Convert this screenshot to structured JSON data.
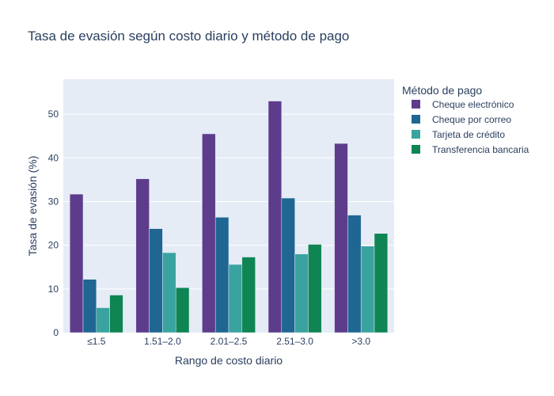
{
  "chart_data": {
    "type": "bar",
    "title": "Tasa de evasión según costo diario y método de pago",
    "xlabel": "Rango de costo diario",
    "ylabel": "Tasa de evasión (%)",
    "categories": [
      "≤1.5",
      "1.51–2.0",
      "2.01–2.5",
      "2.51–3.0",
      ">3.0"
    ],
    "ylim": [
      0,
      58
    ],
    "yticks": [
      0,
      10,
      20,
      30,
      40,
      50
    ],
    "grid": true,
    "legend": {
      "title": "Método de pago",
      "placement": "right"
    },
    "series": [
      {
        "name": "Cheque electrónico",
        "color": "#5e3c8c",
        "values": [
          31.7,
          35.2,
          45.5,
          53.0,
          43.3
        ]
      },
      {
        "name": "Cheque por correo",
        "color": "#1f6693",
        "values": [
          12.2,
          23.8,
          26.4,
          30.8,
          26.9
        ]
      },
      {
        "name": "Tarjeta de crédito",
        "color": "#3aa39f",
        "values": [
          5.7,
          18.3,
          15.6,
          18.0,
          19.8
        ]
      },
      {
        "name": "Transferencia bancaria",
        "color": "#0e8553",
        "values": [
          8.6,
          10.3,
          17.3,
          20.2,
          22.7
        ]
      }
    ]
  }
}
